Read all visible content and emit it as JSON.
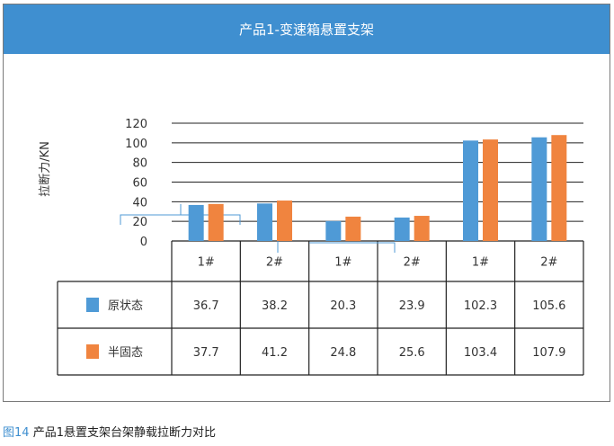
{
  "header": {
    "title": "产品1-变速箱悬置支架"
  },
  "caption": {
    "figure_no": "图14",
    "text": "产品1悬置支架台架静载拉断力对比"
  },
  "chart_data": {
    "type": "bar",
    "title": "产品1-变速箱悬置支架",
    "ylabel": "拉断力/KN",
    "xlabel": "",
    "ylim": [
      0,
      120
    ],
    "yticks": [
      0,
      20,
      40,
      60,
      80,
      100,
      120
    ],
    "grid": true,
    "categories": [
      "1#",
      "2#",
      "1#",
      "2#",
      "1#",
      "2#"
    ],
    "series": [
      {
        "name": "原状态",
        "color": "#4f9ad6",
        "values": [
          36.7,
          38.2,
          20.3,
          23.9,
          102.3,
          105.6
        ]
      },
      {
        "name": "半固态",
        "color": "#f0843f",
        "values": [
          37.7,
          41.2,
          24.8,
          25.6,
          103.4,
          107.9
        ]
      }
    ],
    "table": true
  }
}
